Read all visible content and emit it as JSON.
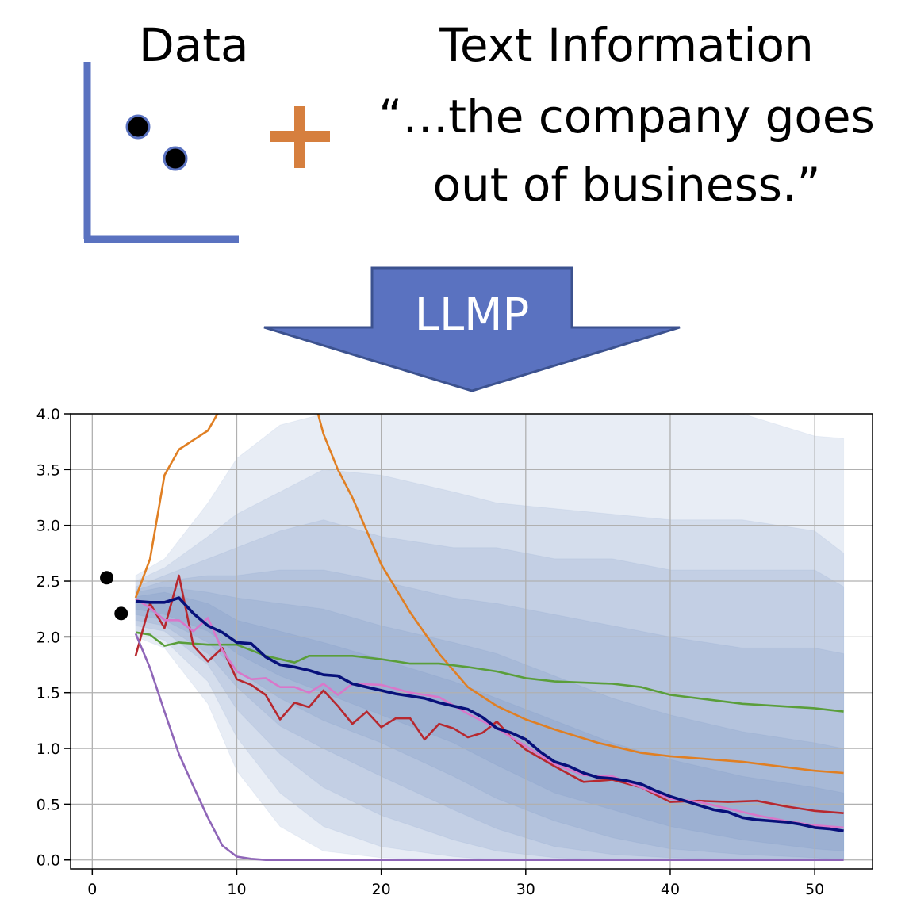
{
  "diagram": {
    "data_label": "Data",
    "text_info_title": "Text Information",
    "quote_lines": [
      "“…the company goes",
      "out of business.”"
    ],
    "arrow_label": "LLMP",
    "colors": {
      "axis_blue": "#5a72c0",
      "plus_orange": "#d67f3e",
      "arrow_fill": "#5a72c0",
      "arrow_stroke": "#3c528f"
    }
  },
  "chart_data": {
    "type": "line",
    "xlim": [
      -1.5,
      54
    ],
    "ylim": [
      -0.08,
      4.0
    ],
    "xticks": [
      0,
      10,
      20,
      30,
      40,
      50
    ],
    "yticks": [
      "0.0",
      "0.5",
      "1.0",
      "1.5",
      "2.0",
      "2.5",
      "3.0",
      "3.5",
      "4.0"
    ],
    "grid": true,
    "observed_points": [
      {
        "x": 1,
        "y": 2.53
      },
      {
        "x": 2,
        "y": 2.21
      }
    ],
    "quantile_bands": {
      "x": [
        3,
        5,
        8,
        10,
        13,
        16,
        20,
        25,
        28,
        32,
        36,
        40,
        45,
        50,
        52
      ],
      "color": "#5a7dbb",
      "bands": [
        {
          "lower": [
            2.0,
            1.9,
            1.4,
            0.8,
            0.3,
            0.08,
            0.02,
            0.0,
            0.0,
            0.0,
            0.0,
            0.0,
            0.0,
            0.0,
            0.0
          ],
          "upper": [
            2.55,
            2.7,
            3.2,
            3.6,
            3.9,
            4.0,
            4.0,
            4.0,
            4.0,
            4.0,
            4.0,
            4.0,
            4.0,
            3.8,
            3.78
          ]
        },
        {
          "lower": [
            2.05,
            1.97,
            1.6,
            1.1,
            0.6,
            0.3,
            0.12,
            0.03,
            0.0,
            0.0,
            0.0,
            0.0,
            0.0,
            0.0,
            0.0
          ],
          "upper": [
            2.5,
            2.62,
            2.9,
            3.1,
            3.3,
            3.5,
            3.45,
            3.3,
            3.2,
            3.15,
            3.1,
            3.05,
            3.05,
            2.95,
            2.75
          ]
        },
        {
          "lower": [
            2.1,
            2.05,
            1.75,
            1.35,
            0.95,
            0.65,
            0.4,
            0.18,
            0.08,
            0.02,
            0.0,
            0.0,
            0.0,
            0.0,
            0.0
          ],
          "upper": [
            2.45,
            2.55,
            2.7,
            2.8,
            2.95,
            3.05,
            2.9,
            2.8,
            2.8,
            2.7,
            2.7,
            2.6,
            2.6,
            2.6,
            2.45
          ]
        },
        {
          "lower": [
            2.15,
            2.1,
            1.85,
            1.55,
            1.2,
            1.0,
            0.75,
            0.45,
            0.28,
            0.12,
            0.05,
            0.02,
            0.0,
            0.0,
            0.0
          ],
          "upper": [
            2.42,
            2.5,
            2.55,
            2.55,
            2.6,
            2.6,
            2.5,
            2.35,
            2.3,
            2.2,
            2.1,
            2.0,
            1.9,
            1.9,
            1.85
          ]
        },
        {
          "lower": [
            2.2,
            2.15,
            1.95,
            1.7,
            1.45,
            1.25,
            1.05,
            0.75,
            0.55,
            0.35,
            0.2,
            0.1,
            0.05,
            0.02,
            0.0
          ],
          "upper": [
            2.4,
            2.45,
            2.4,
            2.35,
            2.3,
            2.25,
            2.1,
            1.95,
            1.85,
            1.65,
            1.45,
            1.3,
            1.15,
            1.05,
            1.0
          ]
        },
        {
          "lower": [
            2.25,
            2.2,
            2.05,
            1.85,
            1.65,
            1.5,
            1.3,
            1.05,
            0.85,
            0.6,
            0.45,
            0.3,
            0.18,
            0.1,
            0.08
          ],
          "upper": [
            2.36,
            2.4,
            2.3,
            2.15,
            2.05,
            1.95,
            1.8,
            1.6,
            1.45,
            1.25,
            1.05,
            0.9,
            0.75,
            0.65,
            0.6
          ]
        }
      ]
    },
    "series": [
      {
        "color": "#e07f23",
        "x": [
          3,
          4,
          5,
          6,
          8,
          10,
          15,
          16,
          17,
          18,
          20,
          22,
          24,
          26,
          28,
          30,
          32,
          35,
          38,
          40,
          45,
          50,
          52
        ],
        "y": [
          2.35,
          2.7,
          3.45,
          3.68,
          3.85,
          4.3,
          4.3,
          3.82,
          3.5,
          3.25,
          2.65,
          2.22,
          1.85,
          1.55,
          1.38,
          1.26,
          1.17,
          1.05,
          0.96,
          0.93,
          0.88,
          0.8,
          0.78
        ]
      },
      {
        "color": "#5a9e3a",
        "x": [
          3,
          4,
          5,
          6,
          8,
          10,
          12,
          14,
          15,
          18,
          20,
          22,
          24,
          26,
          28,
          30,
          32,
          34,
          36,
          38,
          40,
          45,
          50,
          52
        ],
        "y": [
          2.04,
          2.02,
          1.92,
          1.95,
          1.93,
          1.93,
          1.83,
          1.77,
          1.83,
          1.83,
          1.8,
          1.76,
          1.76,
          1.73,
          1.69,
          1.63,
          1.6,
          1.59,
          1.58,
          1.55,
          1.48,
          1.4,
          1.36,
          1.33
        ]
      },
      {
        "color": "#b7282f",
        "x": [
          3,
          4,
          5,
          6,
          7,
          8,
          9,
          10,
          11,
          12,
          13,
          14,
          15,
          16,
          17,
          18,
          19,
          20,
          21,
          22,
          23,
          24,
          25,
          26,
          27,
          28,
          29,
          30,
          32,
          34,
          36,
          38,
          40,
          42,
          44,
          46,
          48,
          50,
          52
        ],
        "y": [
          1.83,
          2.3,
          2.08,
          2.55,
          1.92,
          1.78,
          1.9,
          1.62,
          1.57,
          1.48,
          1.26,
          1.41,
          1.37,
          1.52,
          1.38,
          1.22,
          1.33,
          1.19,
          1.27,
          1.27,
          1.08,
          1.22,
          1.18,
          1.1,
          1.14,
          1.24,
          1.1,
          0.99,
          0.84,
          0.7,
          0.72,
          0.65,
          0.52,
          0.53,
          0.52,
          0.53,
          0.48,
          0.44,
          0.42
        ]
      },
      {
        "color": "#d977c9",
        "x": [
          3,
          4,
          5,
          6,
          7,
          8,
          9,
          10,
          11,
          12,
          13,
          14,
          15,
          16,
          17,
          18,
          20,
          22,
          24,
          26,
          28,
          30,
          32,
          34,
          36,
          38,
          40,
          42,
          44,
          46,
          48,
          50,
          52
        ],
        "y": [
          2.34,
          2.26,
          2.15,
          2.15,
          2.05,
          2.17,
          1.88,
          1.69,
          1.62,
          1.63,
          1.55,
          1.55,
          1.5,
          1.58,
          1.48,
          1.58,
          1.57,
          1.5,
          1.46,
          1.31,
          1.18,
          1.02,
          0.86,
          0.76,
          0.75,
          0.65,
          0.55,
          0.52,
          0.46,
          0.4,
          0.35,
          0.31,
          0.29
        ]
      },
      {
        "color": "#8f66b8",
        "x": [
          3,
          4,
          5,
          6,
          7,
          8,
          9,
          10,
          11,
          12,
          20,
          30,
          40,
          52
        ],
        "y": [
          2.03,
          1.72,
          1.33,
          0.95,
          0.66,
          0.38,
          0.13,
          0.03,
          0.01,
          0.0,
          0.0,
          0.0,
          0.0,
          0.0
        ]
      },
      {
        "color": "#07107a",
        "x": [
          3,
          4,
          5,
          6,
          7,
          8,
          9,
          10,
          11,
          12,
          13,
          14,
          15,
          16,
          17,
          18,
          19,
          20,
          21,
          22,
          23,
          24,
          25,
          26,
          27,
          28,
          29,
          30,
          31,
          32,
          33,
          34,
          35,
          36,
          37,
          38,
          39,
          40,
          41,
          42,
          43,
          44,
          45,
          46,
          47,
          48,
          49,
          50,
          51,
          52
        ],
        "y": [
          2.32,
          2.31,
          2.31,
          2.35,
          2.21,
          2.1,
          2.04,
          1.95,
          1.94,
          1.82,
          1.75,
          1.73,
          1.7,
          1.66,
          1.65,
          1.58,
          1.55,
          1.52,
          1.49,
          1.47,
          1.45,
          1.41,
          1.38,
          1.35,
          1.28,
          1.18,
          1.14,
          1.08,
          0.97,
          0.88,
          0.84,
          0.78,
          0.74,
          0.73,
          0.71,
          0.68,
          0.62,
          0.57,
          0.53,
          0.49,
          0.45,
          0.43,
          0.38,
          0.36,
          0.35,
          0.34,
          0.32,
          0.29,
          0.28,
          0.26
        ],
        "linewidth": 3.6
      }
    ]
  }
}
